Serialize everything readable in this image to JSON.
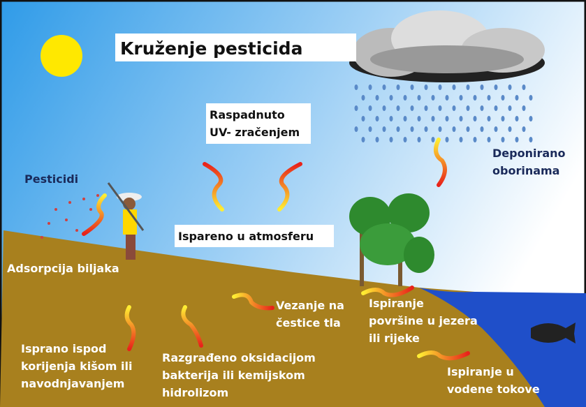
{
  "title": "Kruženje pesticida",
  "labels": [
    {
      "lines": [
        "Raspadnuto",
        "UV- zračenjem"
      ]
    },
    {
      "lines": [
        "Deponirano",
        "oborinama"
      ]
    },
    {
      "lines": [
        "Pesticidi"
      ]
    },
    {
      "lines": [
        "Ispareno u atmosferu"
      ]
    },
    {
      "lines": [
        "Adsorpcija biljaka"
      ]
    },
    {
      "lines": [
        "Vezanje na",
        "čestice tla"
      ]
    },
    {
      "lines": [
        "Ispiranje",
        "površine u jezera",
        "ili rijeke"
      ]
    },
    {
      "lines": [
        "Isprano ispod",
        "korijenja kišom ili",
        "navodnjavanjem"
      ]
    },
    {
      "lines": [
        "Razgrađeno oksidacijom",
        "bakterija ili kemijskom",
        "hidrolizom"
      ]
    },
    {
      "lines": [
        "Ispiranje u",
        "vodene tokove"
      ]
    }
  ]
}
